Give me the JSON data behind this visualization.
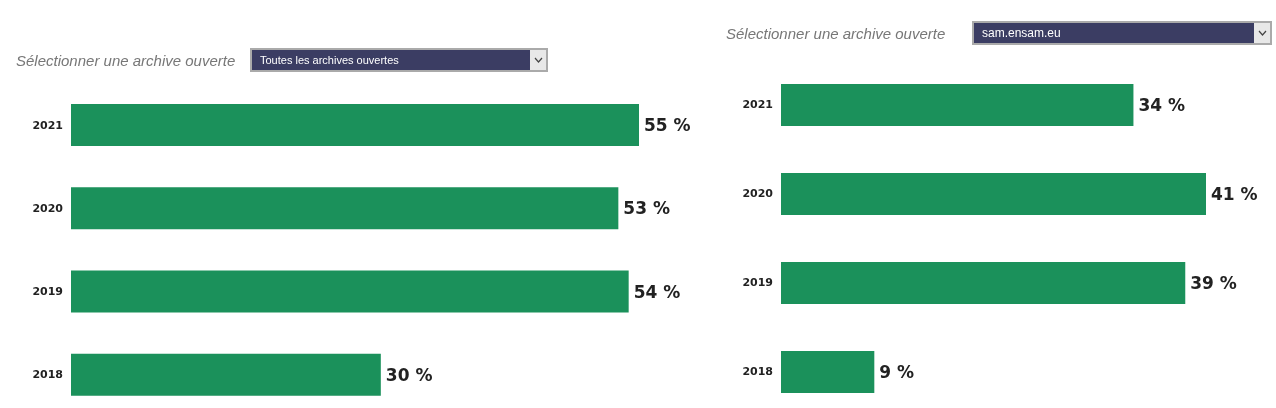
{
  "chart_data": [
    {
      "type": "bar",
      "orientation": "horizontal",
      "categories": [
        "2021",
        "2020",
        "2019",
        "2018"
      ],
      "values": [
        55,
        53,
        54,
        30
      ],
      "color": "#1b915b",
      "value_labels": [
        "55 %",
        "53 %",
        "54 %",
        "30 %"
      ],
      "annotations": [
        "Sélectionner une archive ouverte",
        "Toutes les archives ouvertes"
      ],
      "grid": false,
      "legend": false
    },
    {
      "type": "bar",
      "orientation": "horizontal",
      "categories": [
        "2021",
        "2020",
        "2019",
        "2018"
      ],
      "values": [
        34,
        41,
        39,
        9
      ],
      "color": "#1b915b",
      "value_labels": [
        "34 %",
        "41 %",
        "39 %",
        "9 %"
      ],
      "annotations": [
        "Sélectionner une archive ouverte",
        "sam.ensam.eu"
      ],
      "grid": false,
      "legend": false
    }
  ]
}
